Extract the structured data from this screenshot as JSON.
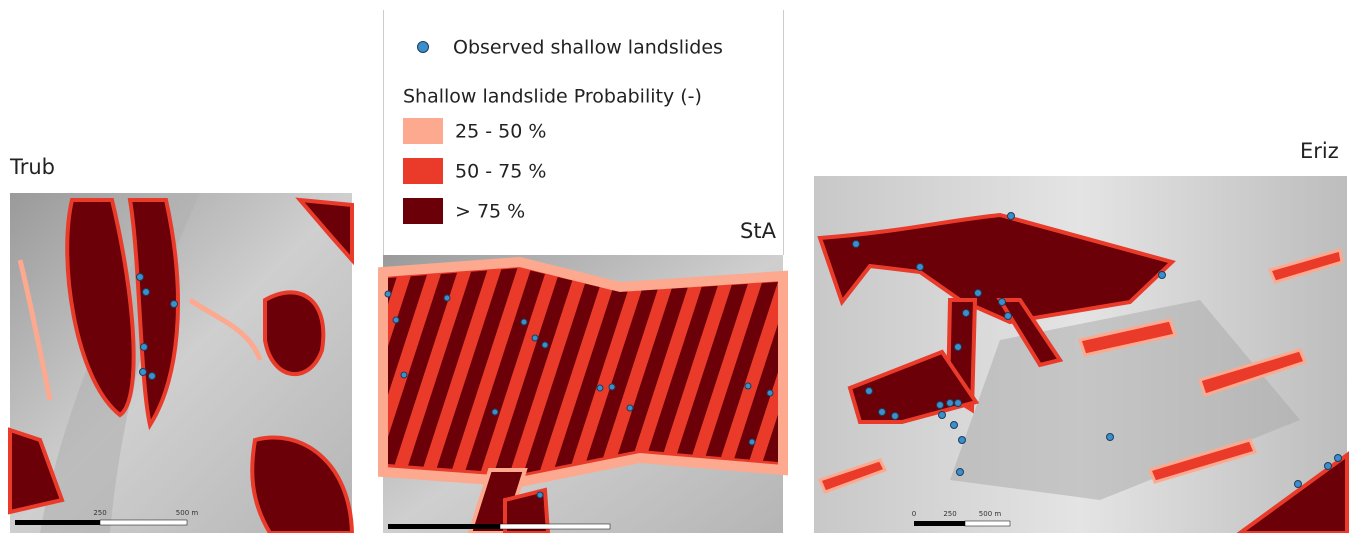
{
  "legend": {
    "points": "Observed shallow landslides",
    "title": "Shallow landslide Probability  (-)",
    "classes": [
      {
        "label": "25 - 50 %",
        "color": "#fca98f"
      },
      {
        "label": "50 - 75 %",
        "color": "#ea3b2a"
      },
      {
        "label": "> 75 %",
        "color": "#6b0008"
      }
    ]
  },
  "panels": [
    {
      "name": "Trub",
      "scale": [
        "250",
        "500 m"
      ]
    },
    {
      "name": "StA"
    },
    {
      "name": "Eriz",
      "scale": [
        "0",
        "250",
        "500 m"
      ]
    }
  ]
}
